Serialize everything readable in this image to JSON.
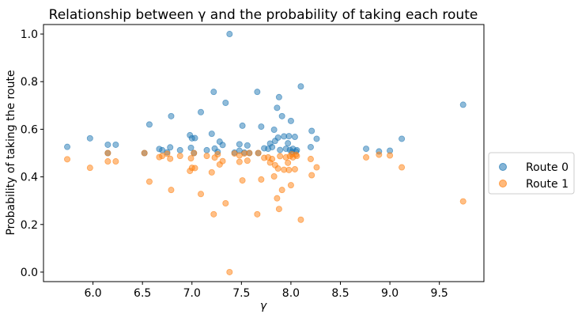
{
  "chart_data": {
    "type": "scatter",
    "title": "Relationship between γ and the probability of taking each route",
    "xlabel": "γ",
    "ylabel": "Probability of taking the route",
    "xlim": [
      5.5,
      9.95
    ],
    "ylim": [
      -0.04,
      1.04
    ],
    "xticks": [
      6.0,
      6.5,
      7.0,
      7.5,
      8.0,
      8.5,
      9.0,
      9.5
    ],
    "xtick_labels": [
      "6.0",
      "6.5",
      "7.0",
      "7.5",
      "8.0",
      "8.5",
      "9.0",
      "9.5"
    ],
    "yticks": [
      0.0,
      0.2,
      0.4,
      0.6,
      0.8,
      1.0
    ],
    "ytick_labels": [
      "0.0",
      "0.2",
      "0.4",
      "0.6",
      "0.8",
      "1.0"
    ],
    "grid": false,
    "legend_position": "outside-right",
    "series": [
      {
        "name": "Route 0",
        "color": "#1f77b4",
        "x": [
          5.74,
          5.97,
          6.15,
          6.15,
          6.23,
          6.52,
          6.57,
          6.67,
          6.7,
          6.75,
          6.78,
          6.79,
          6.88,
          6.98,
          6.99,
          7.0,
          7.02,
          7.03,
          7.09,
          7.15,
          7.2,
          7.22,
          7.23,
          7.26,
          7.28,
          7.31,
          7.34,
          7.38,
          7.43,
          7.48,
          7.48,
          7.51,
          7.53,
          7.56,
          7.58,
          7.66,
          7.67,
          7.7,
          7.73,
          7.77,
          7.79,
          7.81,
          7.83,
          7.84,
          7.86,
          7.87,
          7.88,
          7.89,
          7.91,
          7.93,
          7.95,
          7.97,
          7.98,
          7.99,
          8.0,
          8.01,
          8.02,
          8.04,
          8.05,
          8.06,
          8.1,
          8.2,
          8.21,
          8.26,
          8.76,
          8.89,
          9.0,
          9.12,
          9.74
        ],
        "y": [
          0.526,
          0.562,
          0.535,
          0.5,
          0.535,
          0.5,
          0.62,
          0.517,
          0.512,
          0.503,
          0.524,
          0.655,
          0.512,
          0.575,
          0.522,
          0.562,
          0.5,
          0.563,
          0.672,
          0.512,
          0.581,
          0.757,
          0.519,
          0.505,
          0.548,
          0.534,
          0.711,
          1.0,
          0.502,
          0.537,
          0.51,
          0.615,
          0.502,
          0.532,
          0.5,
          0.757,
          0.5,
          0.611,
          0.52,
          0.518,
          0.54,
          0.525,
          0.598,
          0.551,
          0.69,
          0.565,
          0.735,
          0.513,
          0.655,
          0.57,
          0.518,
          0.541,
          0.571,
          0.513,
          0.635,
          0.505,
          0.518,
          0.568,
          0.507,
          0.512,
          0.78,
          0.525,
          0.593,
          0.56,
          0.518,
          0.507,
          0.51,
          0.56,
          0.703
        ]
      },
      {
        "name": "Route 1",
        "color": "#ff7f0e",
        "x": [
          5.74,
          5.97,
          6.15,
          6.15,
          6.23,
          6.52,
          6.57,
          6.67,
          6.7,
          6.75,
          6.78,
          6.79,
          6.88,
          6.98,
          6.99,
          7.0,
          7.02,
          7.03,
          7.09,
          7.15,
          7.2,
          7.22,
          7.23,
          7.26,
          7.28,
          7.31,
          7.34,
          7.38,
          7.43,
          7.48,
          7.48,
          7.51,
          7.53,
          7.56,
          7.58,
          7.66,
          7.67,
          7.7,
          7.73,
          7.77,
          7.79,
          7.81,
          7.83,
          7.84,
          7.86,
          7.87,
          7.88,
          7.89,
          7.91,
          7.93,
          7.95,
          7.97,
          7.98,
          7.99,
          8.0,
          8.01,
          8.02,
          8.04,
          8.05,
          8.06,
          8.1,
          8.2,
          8.21,
          8.26,
          8.76,
          8.89,
          9.0,
          9.12,
          9.74
        ],
        "y": [
          0.474,
          0.438,
          0.465,
          0.5,
          0.465,
          0.5,
          0.38,
          0.483,
          0.488,
          0.497,
          0.476,
          0.345,
          0.488,
          0.425,
          0.478,
          0.438,
          0.5,
          0.437,
          0.328,
          0.488,
          0.419,
          0.243,
          0.481,
          0.495,
          0.452,
          0.466,
          0.289,
          0.0,
          0.498,
          0.463,
          0.49,
          0.385,
          0.498,
          0.468,
          0.5,
          0.243,
          0.5,
          0.389,
          0.48,
          0.482,
          0.46,
          0.475,
          0.402,
          0.449,
          0.31,
          0.435,
          0.265,
          0.487,
          0.345,
          0.43,
          0.482,
          0.459,
          0.429,
          0.487,
          0.365,
          0.495,
          0.482,
          0.432,
          0.493,
          0.488,
          0.22,
          0.475,
          0.407,
          0.44,
          0.482,
          0.493,
          0.49,
          0.44,
          0.297
        ]
      }
    ]
  }
}
